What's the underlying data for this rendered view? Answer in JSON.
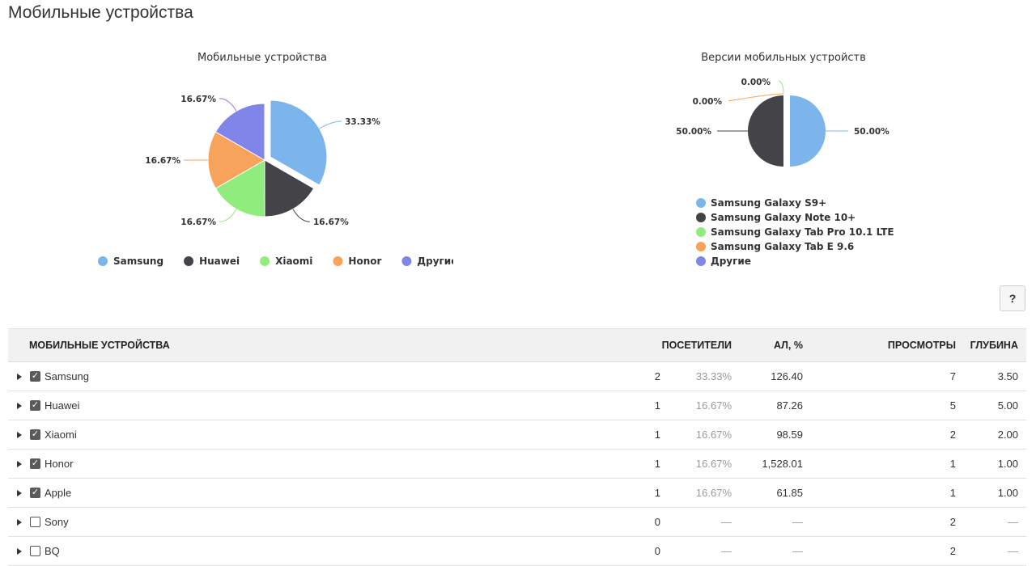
{
  "page": {
    "title": "Мобильные устройства"
  },
  "colors": {
    "samsung": "#7cb5ec",
    "huawei": "#434348",
    "xiaomi": "#90ed7d",
    "honor": "#f7a35c",
    "other": "#8085e9"
  },
  "charts": {
    "devices": {
      "title": "Мобильные устройства",
      "slices": [
        {
          "name": "Samsung",
          "value": 33.33,
          "label": "33.33%",
          "color": "#7cb5ec"
        },
        {
          "name": "Huawei",
          "value": 16.67,
          "label": "16.67%",
          "color": "#434348"
        },
        {
          "name": "Xiaomi",
          "value": 16.67,
          "label": "16.67%",
          "color": "#90ed7d"
        },
        {
          "name": "Honor",
          "value": 16.67,
          "label": "16.67%",
          "color": "#f7a35c"
        },
        {
          "name": "Другие",
          "value": 16.67,
          "label": "16.67%",
          "color": "#8085e9"
        }
      ],
      "legend": [
        "Samsung",
        "Huawei",
        "Xiaomi",
        "Honor",
        "Другие"
      ]
    },
    "versions": {
      "title": "Версии мобильных устройств",
      "slices": [
        {
          "name": "Samsung Galaxy S9+",
          "value": 50.0,
          "label": "50.00%",
          "color": "#7cb5ec"
        },
        {
          "name": "Samsung Galaxy Note 10+",
          "value": 50.0,
          "label": "50.00%",
          "color": "#434348"
        },
        {
          "name": "Samsung Galaxy Tab Pro 10.1 LTE",
          "value": 0.0,
          "label": "0.00%",
          "color": "#90ed7d"
        },
        {
          "name": "Samsung Galaxy Tab E 9.6",
          "value": 0.0,
          "label": "0.00%",
          "color": "#f7a35c"
        },
        {
          "name": "Другие",
          "value": 0.0,
          "label": "",
          "color": "#8085e9"
        }
      ]
    }
  },
  "help_button": {
    "label": "?"
  },
  "table": {
    "headers": {
      "name": "МОБИЛЬНЫЕ УСТРОЙСТВА",
      "visitors": "ПОСЕТИТЕЛИ",
      "al": "АЛ, %",
      "views": "ПРОСМОТРЫ",
      "depth": "ГЛУБИНА"
    },
    "rows": [
      {
        "name": "Samsung",
        "checked": true,
        "visitors": "2",
        "pct": "33.33%",
        "al": "126.40",
        "views": "7",
        "depth": "3.50"
      },
      {
        "name": "Huawei",
        "checked": true,
        "visitors": "1",
        "pct": "16.67%",
        "al": "87.26",
        "views": "5",
        "depth": "5.00"
      },
      {
        "name": "Xiaomi",
        "checked": true,
        "visitors": "1",
        "pct": "16.67%",
        "al": "98.59",
        "views": "2",
        "depth": "2.00"
      },
      {
        "name": "Honor",
        "checked": true,
        "visitors": "1",
        "pct": "16.67%",
        "al": "1,528.01",
        "views": "1",
        "depth": "1.00"
      },
      {
        "name": "Apple",
        "checked": true,
        "visitors": "1",
        "pct": "16.67%",
        "al": "61.85",
        "views": "1",
        "depth": "1.00"
      },
      {
        "name": "Sony",
        "checked": false,
        "visitors": "0",
        "pct": "—",
        "al": "—",
        "views": "2",
        "depth": "—"
      },
      {
        "name": "BQ",
        "checked": false,
        "visitors": "0",
        "pct": "—",
        "al": "—",
        "views": "2",
        "depth": "—"
      }
    ]
  }
}
